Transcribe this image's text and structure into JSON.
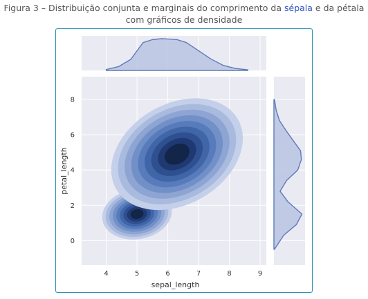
{
  "caption": {
    "line1_before": "Figura 3 – Distribuição conjunta e marginais do comprimento da ",
    "line1_link": "sépala",
    "line1_after": " e da pétala",
    "line2": "com gráficos de densidade"
  },
  "colors": {
    "panel_bg": "#eaeaf2",
    "grid": "#ffffff",
    "density_fill": "#b8c4e3",
    "density_line": "#5f7ab8",
    "box_border": "#2a8fb0"
  },
  "chart_data": {
    "type": "jointplot-kde",
    "xlabel": "sepal_length",
    "ylabel": "petal_length",
    "xlim": [
      3.2,
      9.2
    ],
    "ylim": [
      -1.4,
      9.3
    ],
    "xticks": [
      4,
      5,
      6,
      7,
      8,
      9
    ],
    "yticks": [
      0,
      2,
      4,
      6,
      8
    ],
    "grid": true,
    "joint_clusters": [
      {
        "name": "",
        "center_x": 5.0,
        "center_y": 1.5,
        "spread_x": 0.4,
        "spread_y": 0.5,
        "levels": 9
      },
      {
        "name": "",
        "center_x": 6.3,
        "center_y": 4.9,
        "spread_x": 0.8,
        "spread_y": 1.0,
        "levels": 9
      }
    ],
    "marginal_x": {
      "x": [
        4.0,
        4.4,
        4.8,
        5.0,
        5.2,
        5.5,
        5.8,
        6.0,
        6.3,
        6.6,
        7.0,
        7.4,
        7.8,
        8.2,
        8.6
      ],
      "density": [
        0.03,
        0.12,
        0.35,
        0.62,
        0.88,
        0.97,
        1.0,
        0.99,
        0.97,
        0.88,
        0.62,
        0.36,
        0.16,
        0.06,
        0.02
      ]
    },
    "marginal_y": {
      "y": [
        -0.5,
        0.3,
        0.9,
        1.5,
        2.2,
        2.8,
        3.4,
        4.0,
        4.6,
        5.1,
        5.6,
        6.2,
        6.8,
        7.4,
        8.0
      ],
      "density": [
        0.02,
        0.35,
        0.8,
        1.0,
        0.5,
        0.22,
        0.45,
        0.85,
        0.98,
        0.95,
        0.72,
        0.45,
        0.2,
        0.08,
        0.02
      ]
    }
  }
}
